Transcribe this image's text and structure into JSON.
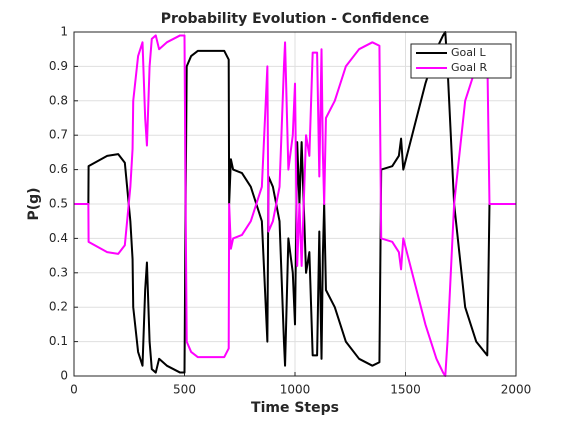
{
  "chart_data": {
    "type": "line",
    "title": "Probability Evolution - Confidence",
    "xlabel": "Time Steps",
    "ylabel": "P(g)",
    "x": [
      0,
      65,
      66,
      150,
      200,
      230,
      255,
      265,
      268,
      290,
      310,
      322,
      330,
      342,
      352,
      370,
      385,
      420,
      480,
      500,
      505,
      510,
      530,
      560,
      680,
      700,
      702,
      710,
      720,
      760,
      800,
      850,
      875,
      880,
      900,
      930,
      950,
      955,
      970,
      990,
      1000,
      1010,
      1020,
      1030,
      1050,
      1065,
      1080,
      1100,
      1110,
      1120,
      1126,
      1132,
      1140,
      1180,
      1230,
      1290,
      1350,
      1382,
      1390,
      1440,
      1470,
      1480,
      1490,
      1530,
      1590,
      1640,
      1670,
      1680,
      1690,
      1720,
      1770,
      1820,
      1870,
      1880,
      2000
    ],
    "series": [
      {
        "name": "Goal L",
        "color": "#000000",
        "values": [
          0.5,
          0.5,
          0.61,
          0.64,
          0.645,
          0.62,
          0.45,
          0.34,
          0.2,
          0.07,
          0.03,
          0.25,
          0.33,
          0.1,
          0.02,
          0.01,
          0.05,
          0.03,
          0.01,
          0.01,
          0.5,
          0.9,
          0.93,
          0.945,
          0.945,
          0.92,
          0.5,
          0.63,
          0.6,
          0.59,
          0.55,
          0.45,
          0.1,
          0.58,
          0.55,
          0.45,
          0.1,
          0.03,
          0.4,
          0.3,
          0.15,
          0.68,
          0.5,
          0.68,
          0.3,
          0.36,
          0.06,
          0.06,
          0.42,
          0.05,
          0.35,
          0.5,
          0.25,
          0.2,
          0.1,
          0.05,
          0.03,
          0.04,
          0.6,
          0.61,
          0.64,
          0.69,
          0.6,
          0.7,
          0.85,
          0.95,
          0.99,
          1,
          0.9,
          0.5,
          0.2,
          0.1,
          0.06,
          0.5,
          0.5
        ]
      },
      {
        "name": "Goal R",
        "color": "#ff00ff",
        "values": [
          0.5,
          0.5,
          0.39,
          0.36,
          0.355,
          0.38,
          0.55,
          0.66,
          0.8,
          0.93,
          0.97,
          0.75,
          0.67,
          0.9,
          0.98,
          0.99,
          0.95,
          0.97,
          0.99,
          0.99,
          0.5,
          0.1,
          0.07,
          0.055,
          0.055,
          0.08,
          0.5,
          0.37,
          0.4,
          0.41,
          0.45,
          0.55,
          0.9,
          0.42,
          0.45,
          0.55,
          0.9,
          0.97,
          0.6,
          0.7,
          0.85,
          0.32,
          0.5,
          0.32,
          0.7,
          0.64,
          0.94,
          0.94,
          0.58,
          0.95,
          0.65,
          0.5,
          0.75,
          0.8,
          0.9,
          0.95,
          0.97,
          0.96,
          0.4,
          0.39,
          0.36,
          0.31,
          0.4,
          0.3,
          0.15,
          0.05,
          0.01,
          0,
          0.1,
          0.5,
          0.8,
          0.9,
          0.94,
          0.5,
          0.5
        ]
      }
    ],
    "xlim": [
      0,
      2000
    ],
    "xticks": [
      0,
      500,
      1000,
      1500,
      2000
    ],
    "ylim": [
      0,
      1
    ],
    "yticks": [
      0,
      0.1,
      0.2,
      0.3,
      0.4,
      0.5,
      0.6,
      0.7,
      0.8,
      0.9,
      1
    ],
    "grid": true,
    "legend": "northeast"
  }
}
